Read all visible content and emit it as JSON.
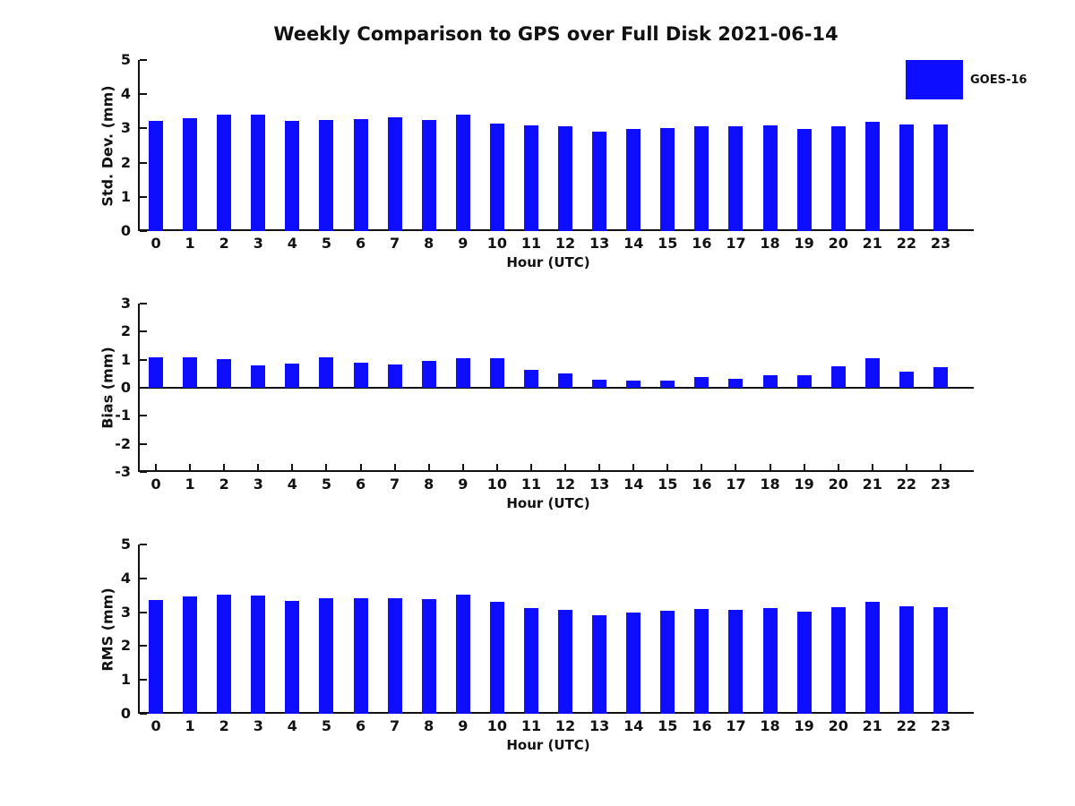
{
  "title": "Weekly Comparison to GPS over Full Disk 2021-06-14",
  "legend": {
    "label": "GOES-16",
    "position": "top-right"
  },
  "colors": {
    "bar": "#0D0DFF",
    "axis": "#111111",
    "text": "#111111",
    "background": "#ffffff"
  },
  "chart_data": [
    {
      "type": "bar",
      "ylabel": "Std. Dev. (mm)",
      "xlabel": "Hour (UTC)",
      "ylim": [
        0,
        5
      ],
      "yticks": [
        0,
        1,
        2,
        3,
        4,
        5
      ],
      "grid": false,
      "categories": [
        "0",
        "1",
        "2",
        "3",
        "4",
        "5",
        "6",
        "7",
        "8",
        "9",
        "10",
        "11",
        "12",
        "13",
        "14",
        "15",
        "16",
        "17",
        "18",
        "19",
        "20",
        "21",
        "22",
        "23"
      ],
      "series": [
        {
          "name": "GOES-16",
          "values": [
            3.22,
            3.31,
            3.4,
            3.4,
            3.23,
            3.25,
            3.27,
            3.33,
            3.25,
            3.4,
            3.14,
            3.08,
            3.06,
            2.9,
            2.98,
            3.02,
            3.06,
            3.06,
            3.1,
            2.98,
            3.06,
            3.19,
            3.12,
            3.11
          ]
        }
      ]
    },
    {
      "type": "bar",
      "ylabel": "Bias (mm)",
      "xlabel": "Hour (UTC)",
      "ylim": [
        -3,
        3
      ],
      "yticks": [
        -3,
        -2,
        -1,
        0,
        1,
        2,
        3
      ],
      "grid": false,
      "categories": [
        "0",
        "1",
        "2",
        "3",
        "4",
        "5",
        "6",
        "7",
        "8",
        "9",
        "10",
        "11",
        "12",
        "13",
        "14",
        "15",
        "16",
        "17",
        "18",
        "19",
        "20",
        "21",
        "22",
        "23"
      ],
      "series": [
        {
          "name": "GOES-16",
          "values": [
            1.1,
            1.1,
            1.01,
            0.81,
            0.86,
            1.08,
            0.89,
            0.83,
            0.96,
            1.05,
            1.05,
            0.64,
            0.5,
            0.29,
            0.24,
            0.27,
            0.37,
            0.31,
            0.46,
            0.46,
            0.78,
            1.05,
            0.59,
            0.74
          ]
        }
      ]
    },
    {
      "type": "bar",
      "ylabel": "RMS (mm)",
      "xlabel": "Hour (UTC)",
      "ylim": [
        0,
        5
      ],
      "yticks": [
        0,
        1,
        2,
        3,
        4,
        5
      ],
      "grid": false,
      "categories": [
        "0",
        "1",
        "2",
        "3",
        "4",
        "5",
        "6",
        "7",
        "8",
        "9",
        "10",
        "11",
        "12",
        "13",
        "14",
        "15",
        "16",
        "17",
        "18",
        "19",
        "20",
        "21",
        "22",
        "23"
      ],
      "series": [
        {
          "name": "GOES-16",
          "values": [
            3.37,
            3.46,
            3.53,
            3.49,
            3.33,
            3.41,
            3.4,
            3.4,
            3.38,
            3.53,
            3.3,
            3.13,
            3.07,
            2.91,
            3.0,
            3.03,
            3.09,
            3.06,
            3.12,
            3.01,
            3.14,
            3.31,
            3.17,
            3.16
          ]
        }
      ]
    }
  ]
}
